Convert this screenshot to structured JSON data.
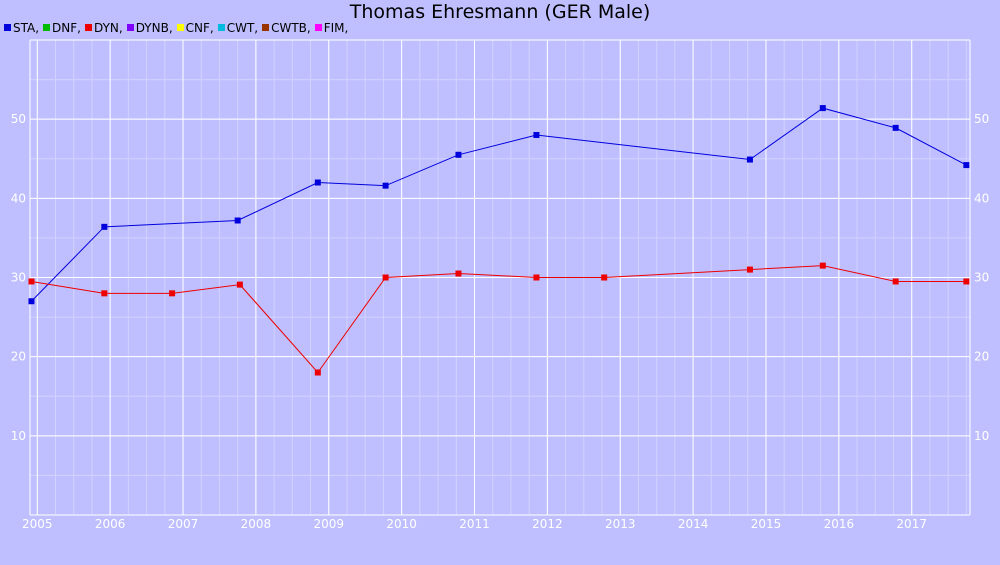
{
  "chart_data": {
    "type": "line",
    "title": "Thomas Ehresmann (GER Male)",
    "xlabel": "",
    "ylabel": "",
    "legend": [
      {
        "name": "STA",
        "label": "STA,",
        "color": "#0000dd"
      },
      {
        "name": "DNF",
        "label": "DNF,",
        "color": "#00bb00"
      },
      {
        "name": "DYN",
        "label": "DYN,",
        "color": "#ee0000"
      },
      {
        "name": "DYNB",
        "label": "DYNB,",
        "color": "#7f00ff"
      },
      {
        "name": "CNF",
        "label": "CNF,",
        "color": "#ffff00"
      },
      {
        "name": "CWT",
        "label": "CWT,",
        "color": "#00bbdd"
      },
      {
        "name": "CWTB",
        "label": "CWTB,",
        "color": "#993300"
      },
      {
        "name": "FIM",
        "label": "FIM,",
        "color": "#ff00ff"
      }
    ],
    "legend_position": "top-left",
    "grid": true,
    "xlim": [
      2004.9,
      2017.8
    ],
    "ylim": [
      0,
      60
    ],
    "x_ticks": [
      "2005",
      "2006",
      "2007",
      "2008",
      "2009",
      "2010",
      "2011",
      "2012",
      "2013",
      "2014",
      "2015",
      "2016",
      "2017"
    ],
    "y_ticks": [
      "10",
      "20",
      "30",
      "40",
      "50"
    ],
    "series": [
      {
        "name": "STA",
        "color": "#0000dd",
        "points": [
          {
            "x": 2004.92,
            "y": 27.0
          },
          {
            "x": 2005.92,
            "y": 36.4
          },
          {
            "x": 2007.75,
            "y": 37.2
          },
          {
            "x": 2008.85,
            "y": 42.0
          },
          {
            "x": 2009.78,
            "y": 41.6
          },
          {
            "x": 2010.78,
            "y": 45.5
          },
          {
            "x": 2011.85,
            "y": 48.0
          },
          {
            "x": 2014.78,
            "y": 44.9
          },
          {
            "x": 2015.78,
            "y": 51.4
          },
          {
            "x": 2016.78,
            "y": 48.9
          },
          {
            "x": 2017.75,
            "y": 44.2
          }
        ]
      },
      {
        "name": "DYN",
        "color": "#ee0000",
        "points": [
          {
            "x": 2004.92,
            "y": 29.5
          },
          {
            "x": 2005.92,
            "y": 28.0
          },
          {
            "x": 2006.85,
            "y": 28.0
          },
          {
            "x": 2007.78,
            "y": 29.1
          },
          {
            "x": 2008.85,
            "y": 18.0
          },
          {
            "x": 2009.78,
            "y": 30.0
          },
          {
            "x": 2010.78,
            "y": 30.5
          },
          {
            "x": 2011.85,
            "y": 30.0
          },
          {
            "x": 2012.78,
            "y": 30.0
          },
          {
            "x": 2014.78,
            "y": 31.0
          },
          {
            "x": 2015.78,
            "y": 31.5
          },
          {
            "x": 2016.78,
            "y": 29.5
          },
          {
            "x": 2017.75,
            "y": 29.5
          }
        ]
      }
    ]
  }
}
